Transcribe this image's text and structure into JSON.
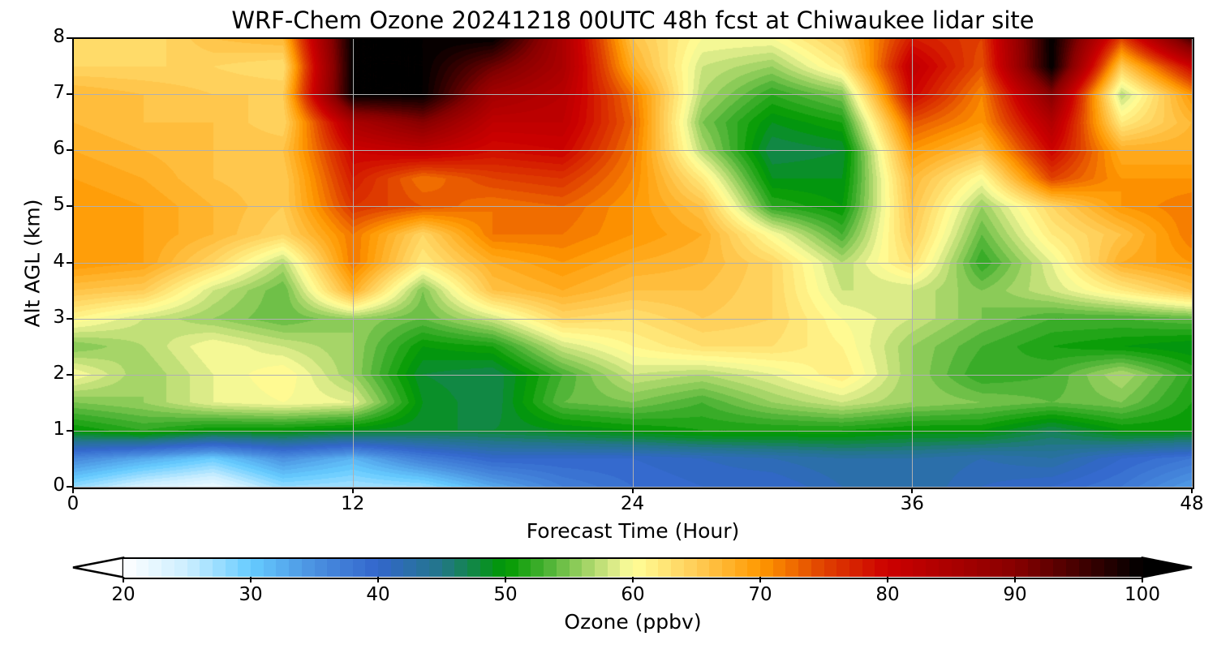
{
  "chart_data": {
    "type": "heatmap",
    "title": "WRF-Chem Ozone  20241218 00UTC 48h fcst at Chiwaukee lidar site",
    "xlabel": "Forecast Time (Hour)",
    "ylabel": "Alt AGL (km)",
    "xlim": [
      0,
      48
    ],
    "ylim": [
      0,
      8
    ],
    "xticks": [
      "0",
      "12",
      "24",
      "36",
      "48"
    ],
    "yticks": [
      "0",
      "1",
      "2",
      "3",
      "4",
      "5",
      "6",
      "7",
      "8"
    ],
    "grid": true,
    "x": [
      0,
      3,
      6,
      9,
      12,
      15,
      18,
      21,
      24,
      27,
      30,
      33,
      36,
      39,
      42,
      45,
      48
    ],
    "y": [
      0,
      0.5,
      1,
      1.5,
      2,
      2.5,
      3,
      3.5,
      4,
      4.5,
      5,
      5.5,
      6,
      6.5,
      7,
      7.5,
      8
    ],
    "z": [
      [
        28,
        24,
        22,
        28,
        27,
        28,
        33,
        37,
        39,
        40,
        40,
        42,
        43,
        41,
        40,
        38,
        34
      ],
      [
        36,
        33,
        30,
        35,
        32,
        37,
        40,
        40,
        40,
        41,
        42,
        43,
        43,
        42,
        43,
        40,
        38
      ],
      [
        50,
        52,
        50,
        50,
        49,
        48,
        48,
        49,
        50,
        51,
        51,
        51,
        50,
        50,
        47,
        50,
        50
      ],
      [
        55,
        56,
        59,
        60,
        59,
        49,
        47,
        54,
        55,
        53,
        56,
        58,
        56,
        55,
        54,
        55,
        51
      ],
      [
        60,
        56,
        59,
        61,
        56,
        48,
        47,
        53,
        58,
        57,
        59,
        62,
        56,
        52,
        53,
        57,
        52
      ],
      [
        55,
        57,
        60,
        58,
        56,
        50,
        51,
        58,
        61,
        63,
        63,
        61,
        56,
        53,
        51,
        50,
        49
      ],
      [
        61,
        58,
        56,
        54,
        56,
        54,
        58,
        64,
        63,
        65,
        64,
        60,
        58,
        55,
        53,
        53,
        54
      ],
      [
        66,
        65,
        58,
        54,
        68,
        55,
        66,
        68,
        66,
        66,
        64,
        58,
        58,
        55,
        58,
        62,
        66
      ],
      [
        70,
        69,
        64,
        57,
        72,
        62,
        68,
        70,
        68,
        67,
        64,
        57,
        63,
        52,
        59,
        68,
        70
      ],
      [
        70,
        69,
        67,
        64,
        72,
        64,
        72,
        72,
        70,
        68,
        60,
        53,
        65,
        54,
        62,
        66,
        72
      ],
      [
        70,
        69,
        67,
        65,
        76,
        74,
        72,
        73,
        70,
        66,
        52,
        50,
        66,
        56,
        64,
        70,
        72
      ],
      [
        69,
        68,
        66,
        65,
        78,
        72,
        75,
        76,
        71,
        62,
        49,
        49,
        67,
        60,
        75,
        70,
        70
      ],
      [
        68,
        67,
        66,
        66,
        80,
        82,
        79,
        80,
        72,
        57,
        47,
        48,
        70,
        66,
        80,
        68,
        68
      ],
      [
        67,
        66,
        66,
        64,
        85,
        90,
        82,
        82,
        73,
        55,
        49,
        51,
        74,
        70,
        84,
        62,
        67
      ],
      [
        67,
        66,
        65,
        65,
        100,
        100,
        86,
        83,
        72,
        57,
        52,
        55,
        80,
        71,
        90,
        57,
        70
      ],
      [
        64,
        64,
        64,
        63,
        100,
        100,
        92,
        85,
        68,
        58,
        56,
        62,
        82,
        74,
        100,
        65,
        80
      ],
      [
        64,
        63,
        66,
        67,
        100,
        100,
        100,
        85,
        66,
        60,
        60,
        65,
        78,
        75,
        100,
        75,
        95
      ]
    ],
    "colorbar": {
      "label": "Ozone  (ppbv)",
      "range": [
        20,
        100
      ],
      "step": 1,
      "extend": "both",
      "ticks": [
        "20",
        "30",
        "40",
        "50",
        "60",
        "70",
        "80",
        "90",
        "100"
      ],
      "anchors": [
        [
          20,
          "#ffffff"
        ],
        [
          25,
          "#cceeff"
        ],
        [
          30,
          "#66ccff"
        ],
        [
          35,
          "#4a90e0"
        ],
        [
          40,
          "#3366cc"
        ],
        [
          45,
          "#227788"
        ],
        [
          50,
          "#009900"
        ],
        [
          53,
          "#44b030"
        ],
        [
          56,
          "#99d060"
        ],
        [
          59,
          "#e8f090"
        ],
        [
          60,
          "#ffff99"
        ],
        [
          65,
          "#ffcc55"
        ],
        [
          70,
          "#ff9900"
        ],
        [
          75,
          "#e04000"
        ],
        [
          80,
          "#cc0000"
        ],
        [
          90,
          "#880000"
        ],
        [
          100,
          "#000000"
        ]
      ]
    }
  }
}
